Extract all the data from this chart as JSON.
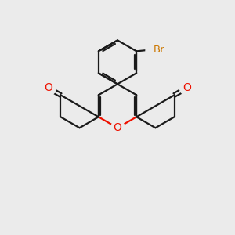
{
  "background_color": "#ebebeb",
  "bond_color": "#1a1a1a",
  "oxygen_color": "#ee1100",
  "bromine_color": "#cc7700",
  "bond_width": 1.6,
  "figsize": [
    3.0,
    3.0
  ],
  "dpi": 100,
  "xlim": [
    0,
    10
  ],
  "ylim": [
    0,
    10
  ]
}
